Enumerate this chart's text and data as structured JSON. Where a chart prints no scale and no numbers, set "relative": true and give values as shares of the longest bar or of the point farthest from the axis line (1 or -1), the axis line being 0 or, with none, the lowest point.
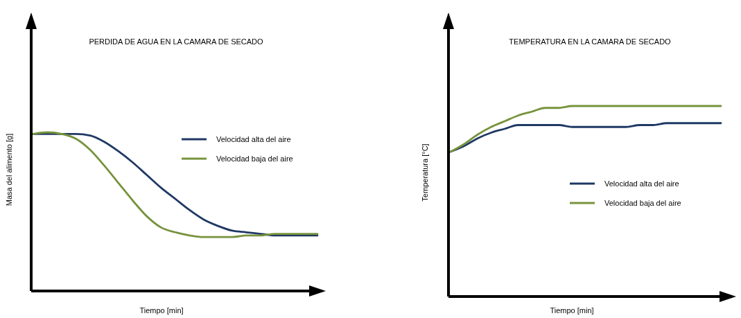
{
  "chart_data": [
    {
      "type": "line",
      "title": "PERDIDA DE AGUA EN LA CAMARA DE SECADO",
      "xlabel": "Tiempo [min]",
      "ylabel": "Masa del alimento [g]",
      "relative": true,
      "legend": "right",
      "categories": [
        null,
        null,
        null,
        null,
        null,
        null,
        null,
        null,
        null,
        null,
        null,
        null,
        null,
        null,
        null,
        null,
        null,
        null,
        null,
        null,
        null
      ],
      "series": [
        {
          "name": "Velocidad alta del aire",
          "color": "#1f3864",
          "values": [
            0.99,
            0.99,
            0.99,
            0.99,
            0.98,
            0.94,
            0.88,
            0.81,
            0.73,
            0.65,
            0.58,
            0.51,
            0.45,
            0.41,
            0.38,
            0.37,
            0.36,
            0.35,
            0.35,
            0.35,
            0.35
          ]
        },
        {
          "name": "Velocidad baja del aire",
          "color": "#77933c",
          "values": [
            0.99,
            1,
            0.99,
            0.96,
            0.89,
            0.79,
            0.68,
            0.57,
            0.47,
            0.4,
            0.37,
            0.35,
            0.34,
            0.34,
            0.34,
            0.35,
            0.35,
            0.36,
            0.36,
            0.36,
            0.36
          ]
        }
      ]
    },
    {
      "type": "line",
      "title": "TEMPERATURA EN LA CAMARA DE SECADO",
      "xlabel": "Tiempo [min]",
      "ylabel": "Temperatura [°C]",
      "relative": true,
      "legend": "right",
      "categories": [
        null,
        null,
        null,
        null,
        null,
        null,
        null,
        null,
        null,
        null,
        null,
        null,
        null,
        null,
        null,
        null,
        null,
        null,
        null,
        null,
        null
      ],
      "series": [
        {
          "name": "Velocidad alta del aire",
          "color": "#1f3864",
          "values": [
            0.76,
            0.79,
            0.83,
            0.86,
            0.88,
            0.9,
            0.9,
            0.9,
            0.9,
            0.89,
            0.89,
            0.89,
            0.89,
            0.89,
            0.9,
            0.9,
            0.91,
            0.91,
            0.91,
            0.91,
            0.91
          ]
        },
        {
          "name": "Velocidad baja del aire",
          "color": "#77933c",
          "values": [
            0.76,
            0.8,
            0.85,
            0.89,
            0.92,
            0.95,
            0.97,
            0.99,
            0.99,
            1,
            1,
            1,
            1,
            1,
            1,
            1,
            1,
            1,
            1,
            1,
            1
          ]
        }
      ]
    }
  ]
}
